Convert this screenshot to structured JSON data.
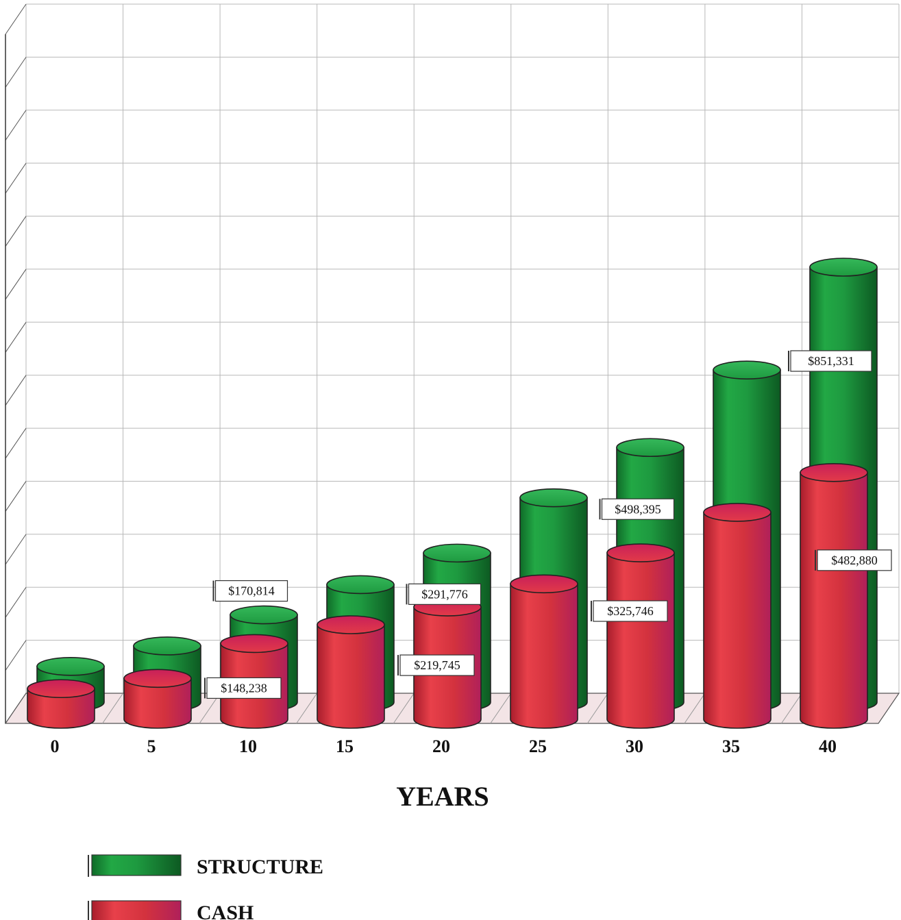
{
  "chart_data": {
    "type": "bar",
    "xlabel": "YEARS",
    "categories": [
      "0",
      "5",
      "10",
      "15",
      "20",
      "25",
      "30",
      "35",
      "40"
    ],
    "ylim": [
      0,
      1200000
    ],
    "grid": true,
    "legend_position": "bottom-left",
    "series": [
      {
        "name": "STRUCTURE",
        "color": "#1f9a3c",
        "values": [
          70000,
          110000,
          170814,
          230000,
          291776,
          400000,
          498395,
          650000,
          851331
        ],
        "labels": [
          "",
          "",
          "$170,814",
          "",
          "$291,776",
          "",
          "$498,395",
          "",
          "$851,331"
        ]
      },
      {
        "name": "CASH",
        "color": "#d8333f",
        "values": [
          60000,
          80000,
          148238,
          185000,
          219745,
          265000,
          325746,
          405000,
          482880
        ],
        "labels": [
          "",
          "",
          "$148,238",
          "",
          "$219,745",
          "",
          "$325,746",
          "",
          "$482,880"
        ]
      }
    ]
  }
}
